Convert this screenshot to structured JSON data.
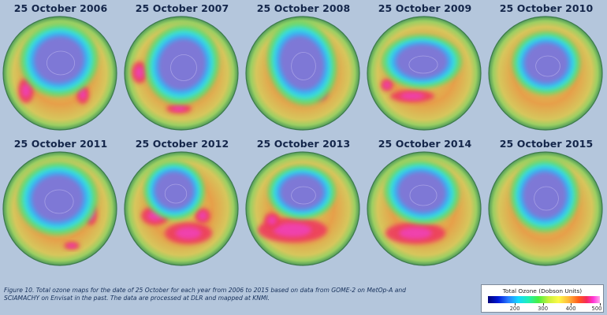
{
  "maps": [
    {
      "title": "25 October 2006",
      "variant": 0
    },
    {
      "title": "25 October 2007",
      "variant": 1
    },
    {
      "title": "25 October 2008",
      "variant": 2
    },
    {
      "title": "25 October 2009",
      "variant": 3
    },
    {
      "title": "25 October 2010",
      "variant": 4
    },
    {
      "title": "25 October 2011",
      "variant": 5
    },
    {
      "title": "25 October 2012",
      "variant": 6
    },
    {
      "title": "25 October 2013",
      "variant": 7
    },
    {
      "title": "25 October 2014",
      "variant": 8
    },
    {
      "title": "25 October 2015",
      "variant": 9
    }
  ],
  "caption": "Figure 10. Total ozone maps for the date of 25 October for each year from 2006 to 2015 based on data from GOME-2 on MetOp-A and SCIAMACHY on Envisat in the past. The data are processed at DLR and mapped at KNMI.",
  "legend": {
    "title": "Total Ozone (Dobson Units)",
    "ticks": [
      "200",
      "300",
      "400",
      "500"
    ]
  },
  "colors": {
    "background": "#b4c6dc",
    "title_text": "#14264a",
    "hole": "#7e78d6",
    "ring_blue": "#3ab0f4",
    "ring_cyan": "#38e0d8",
    "ring_green": "#6cd86c",
    "mid_yellow": "#d4d65a",
    "outer_orange": "#e6a04a",
    "high_red": "#ee3a5e",
    "high_magenta": "#f040c8",
    "rim_green": "#4e9a5a"
  }
}
